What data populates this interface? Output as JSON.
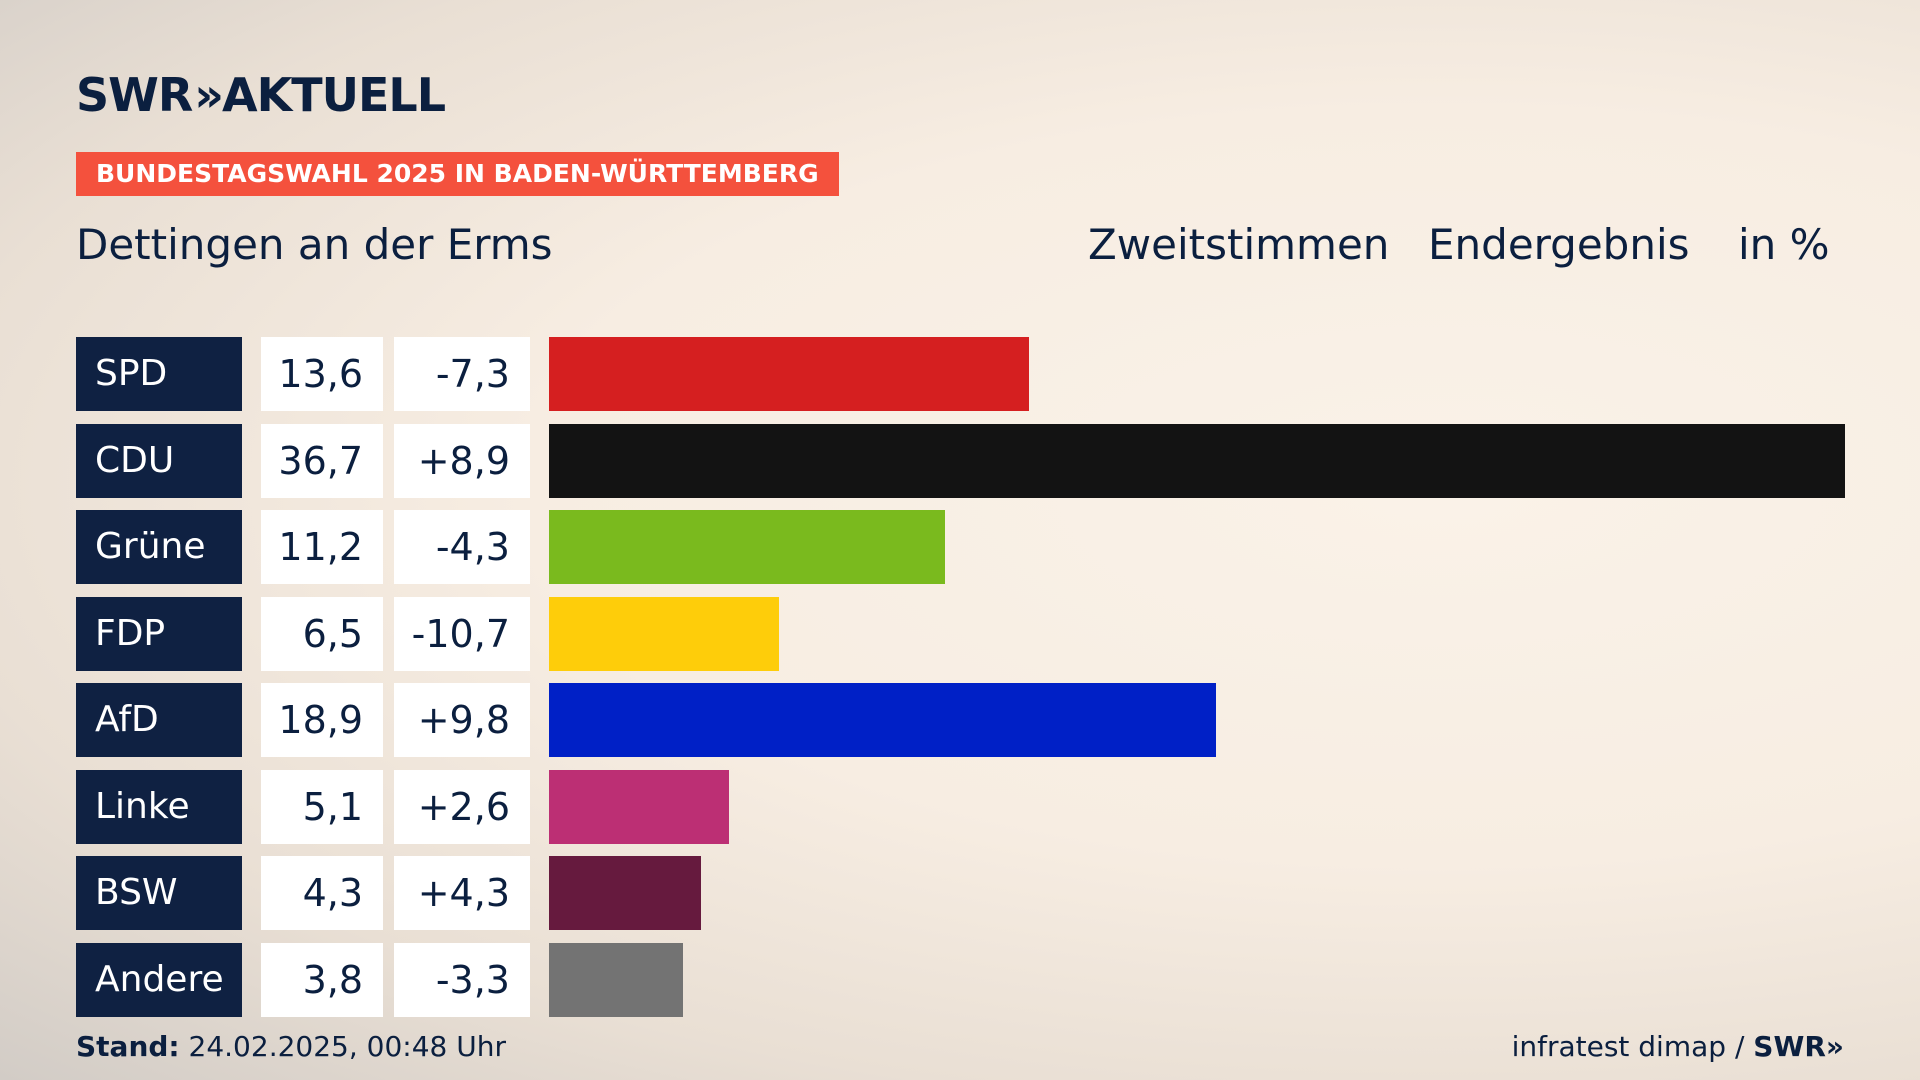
{
  "brand": {
    "logo_text": "SWR",
    "logo_chevrons": "»",
    "logo_suffix": "AKTUELL"
  },
  "banner": "BUNDESTAGSWAHL 2025 IN BADEN-WÜRTTEMBERG",
  "place": "Dettingen an der Erms",
  "header": {
    "vote": "Zweitstimmen",
    "status": "Endergebnis",
    "unit": "in %"
  },
  "chart_data": {
    "type": "bar",
    "orientation": "horizontal",
    "categories": [
      "SPD",
      "CDU",
      "Grüne",
      "FDP",
      "AfD",
      "Linke",
      "BSW",
      "Andere"
    ],
    "values": [
      13.6,
      36.7,
      11.2,
      6.5,
      18.9,
      5.1,
      4.3,
      3.8
    ],
    "value_labels": [
      "13,6",
      "36,7",
      "11,2",
      "6,5",
      "18,9",
      "5,1",
      "4,3",
      "3,8"
    ],
    "diff_labels": [
      "-7,3",
      "+8,9",
      "-4,3",
      "-10,7",
      "+9,8",
      "+2,6",
      "+4,3",
      "-3,3"
    ],
    "colors": [
      "#d51f20",
      "#131313",
      "#7aba1e",
      "#fecd0a",
      "#0020c6",
      "#bc2f74",
      "#661a3e",
      "#737373"
    ],
    "xlim": [
      0,
      36.7
    ],
    "grid": false,
    "legend": "none"
  },
  "footer": {
    "stand_label": "Stand:",
    "stand_value": "24.02.2025, 00:48 Uhr",
    "source": "infratest dimap /",
    "source_brand": "SWR»"
  }
}
